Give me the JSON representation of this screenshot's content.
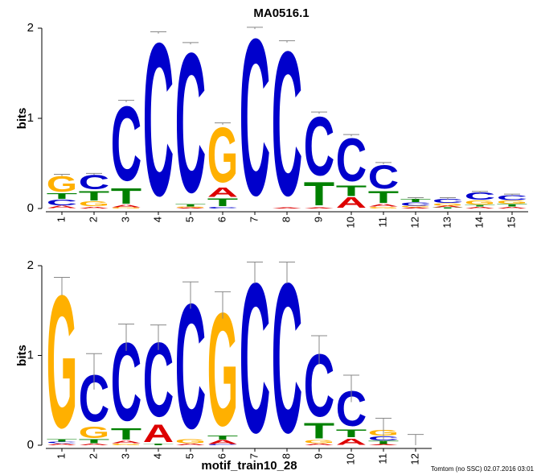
{
  "chart_data": [
    {
      "type": "logo",
      "title": "MA0516.1",
      "ylabel": "bits",
      "ylim": [
        0,
        2
      ],
      "yticks": [
        0,
        1,
        2
      ],
      "categories": [
        "1",
        "2",
        "3",
        "4",
        "5",
        "6",
        "7",
        "8",
        "9",
        "10",
        "11",
        "12",
        "13",
        "14",
        "15"
      ],
      "series": [
        {
          "name": "A",
          "color": "#dd0000",
          "values": [
            0.03,
            0.02,
            0.03,
            0,
            0.01,
            0.12,
            0,
            0.01,
            0.01,
            0.13,
            0.03,
            0.01,
            0.02,
            0.02,
            0.02
          ]
        },
        {
          "name": "C",
          "color": "#0000cc",
          "values": [
            0.07,
            0.18,
            0.95,
            1.95,
            1.78,
            0.02,
            2.0,
            1.84,
            0.75,
            0.55,
            0.3,
            0.04,
            0.05,
            0.09,
            0.06
          ]
        },
        {
          "name": "G",
          "color": "#ffb000",
          "values": [
            0.2,
            0.06,
            0.01,
            0,
            0.01,
            0.7,
            0,
            0,
            0,
            0,
            0.02,
            0.02,
            0.03,
            0.05,
            0.04
          ]
        },
        {
          "name": "T",
          "color": "#008000",
          "values": [
            0.07,
            0.12,
            0.2,
            0,
            0.03,
            0.1,
            0,
            0,
            0.3,
            0.13,
            0.15,
            0.04,
            0.01,
            0.02,
            0.03
          ]
        }
      ],
      "errors": [
        0.01,
        0.01,
        0.01,
        0.01,
        0.01,
        0.01,
        0.01,
        0.01,
        0.01,
        0.01,
        0.01,
        0.01,
        0.01,
        0.01,
        0.01
      ]
    },
    {
      "type": "logo",
      "ylabel": "bits",
      "xlabel": "motif_train10_28",
      "ylim": [
        0,
        2
      ],
      "yticks": [
        0,
        1,
        2
      ],
      "categories": [
        "1",
        "2",
        "3",
        "4",
        "5",
        "6",
        "7",
        "8",
        "9",
        "10",
        "11",
        "12"
      ],
      "series": [
        {
          "name": "A",
          "color": "#dd0000",
          "values": [
            0.02,
            0.02,
            0.03,
            0.23,
            0.02,
            0.05,
            0,
            0,
            0.02,
            0.08,
            0.01,
            0
          ]
        },
        {
          "name": "C",
          "color": "#0000cc",
          "values": [
            0.02,
            0.6,
            1.0,
            0.95,
            1.6,
            0.01,
            1.92,
            1.92,
            0.8,
            0.45,
            0.05,
            0
          ]
        },
        {
          "name": "G",
          "color": "#ffb000",
          "values": [
            1.7,
            0.15,
            0.02,
            0,
            0.05,
            1.45,
            0,
            0,
            0.04,
            0,
            0.07,
            0
          ]
        },
        {
          "name": "T",
          "color": "#008000",
          "values": [
            0.03,
            0.05,
            0.15,
            0.02,
            0,
            0.05,
            0,
            0,
            0.2,
            0.1,
            0.04,
            0
          ]
        }
      ],
      "errors": [
        0.1,
        0.2,
        0.15,
        0.14,
        0.15,
        0.15,
        0.12,
        0.12,
        0.16,
        0.15,
        0.13,
        0.12
      ]
    }
  ],
  "footer": "Tomtom (no SSC) 02.07.2016 03:01"
}
